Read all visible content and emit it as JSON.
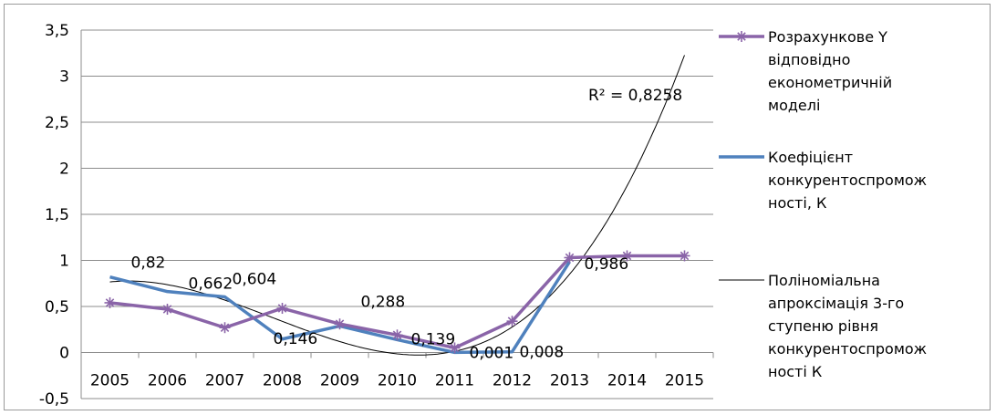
{
  "chart_data": {
    "type": "line",
    "categories": [
      "2005",
      "2006",
      "2007",
      "2008",
      "2009",
      "2010",
      "2011",
      "2012",
      "2013",
      "2014",
      "2015"
    ],
    "ylim": [
      -0.5,
      3.5
    ],
    "ytick_labels": [
      "3,5",
      "3",
      "2,5",
      "2",
      "1,5",
      "1",
      "0,5",
      "0",
      "-0,5"
    ],
    "yticks": [
      3.5,
      3,
      2.5,
      2,
      1.5,
      1,
      0.5,
      0,
      -0.5
    ],
    "grid": true,
    "legend_position": "right",
    "colors": {
      "calc": "#8a64a8",
      "coef": "#4f81bd",
      "poly": "#000000",
      "grid": "#8c8c8c"
    },
    "series": [
      {
        "name": "Розрахункове Y відповідно економетричній моделі",
        "values": [
          0.54,
          0.47,
          0.27,
          0.48,
          0.31,
          0.19,
          0.05,
          0.34,
          1.03,
          1.05,
          1.05
        ],
        "marker": "asterisk"
      },
      {
        "name": "Коефіцієнт конкурентоспроможності,    К",
        "values": [
          0.82,
          0.662,
          0.604,
          0.146,
          0.288,
          0.139,
          0.001,
          0.008,
          0.986,
          null,
          null
        ],
        "data_labels": [
          "0,82",
          "0,662",
          "0,604",
          "0,146",
          "0,288",
          "0,139",
          "0,001",
          "0,008",
          "0,986"
        ]
      },
      {
        "name": "Поліноміальна апроксімація 3-го ступеню рівня конкурентоспроможності К",
        "type": "trendline",
        "annotation": "R² = 0,8258"
      }
    ],
    "legend": [
      {
        "key": "calc",
        "lines": [
          "Розрахункове Y",
          "відповідно",
          "економетричній",
          "моделі"
        ]
      },
      {
        "key": "coef",
        "lines": [
          "Коефіцієнт",
          "конкурентоспромож",
          "ності,    К"
        ]
      },
      {
        "key": "poly",
        "lines": [
          "Поліноміальна",
          "апроксімація 3-го",
          "ступеню рівня",
          "конкурентоспромож",
          "ності К"
        ]
      }
    ]
  }
}
